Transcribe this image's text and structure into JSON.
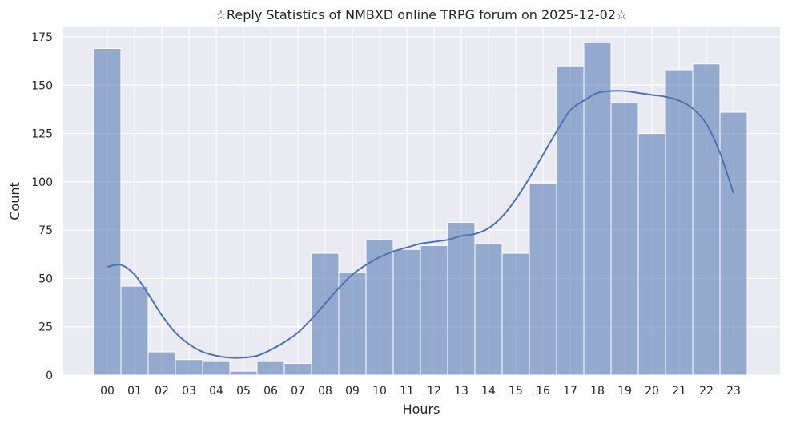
{
  "chart_data": {
    "type": "bar",
    "title": "☆Reply Statistics of NMBXD online TRPG forum on 2025-12-02☆",
    "xlabel": "Hours",
    "ylabel": "Count",
    "categories": [
      "00",
      "01",
      "02",
      "03",
      "04",
      "05",
      "06",
      "07",
      "08",
      "09",
      "10",
      "11",
      "12",
      "13",
      "14",
      "15",
      "16",
      "17",
      "18",
      "19",
      "20",
      "21",
      "22",
      "23"
    ],
    "values": [
      169,
      46,
      12,
      8,
      7,
      2,
      7,
      6,
      63,
      53,
      70,
      65,
      67,
      79,
      68,
      63,
      99,
      160,
      172,
      141,
      125,
      158,
      161,
      136
    ],
    "yticks": [
      0,
      25,
      50,
      75,
      100,
      125,
      150,
      175
    ],
    "ylim": [
      0,
      180
    ],
    "grid": true,
    "kde": {
      "x": [
        0,
        0.5,
        1,
        1.5,
        2,
        2.5,
        3,
        3.5,
        4,
        4.5,
        5,
        5.5,
        6,
        6.5,
        7,
        7.5,
        8,
        8.5,
        9,
        9.5,
        10,
        10.5,
        11,
        11.5,
        12,
        12.5,
        13,
        13.5,
        14,
        14.5,
        15,
        15.5,
        16,
        16.5,
        17,
        17.5,
        18,
        18.5,
        19,
        19.5,
        20,
        20.5,
        21,
        21.5,
        22,
        22.5,
        23
      ],
      "y": [
        56,
        57,
        52,
        42,
        31,
        22,
        16,
        12,
        10,
        9,
        9,
        10,
        13,
        17,
        22,
        29,
        37,
        45,
        52,
        57,
        61,
        64,
        66,
        68,
        69,
        70,
        72,
        73,
        76,
        82,
        91,
        102,
        114,
        126,
        137,
        142,
        146,
        147,
        147,
        146,
        145,
        144,
        142,
        138,
        130,
        115,
        94
      ]
    },
    "colors": {
      "bar_fill": "#4c72b0",
      "bar_opacity": 0.55,
      "line": "#4c72b0",
      "plot_bg": "#eaeaf2",
      "grid": "#ffffff"
    }
  }
}
